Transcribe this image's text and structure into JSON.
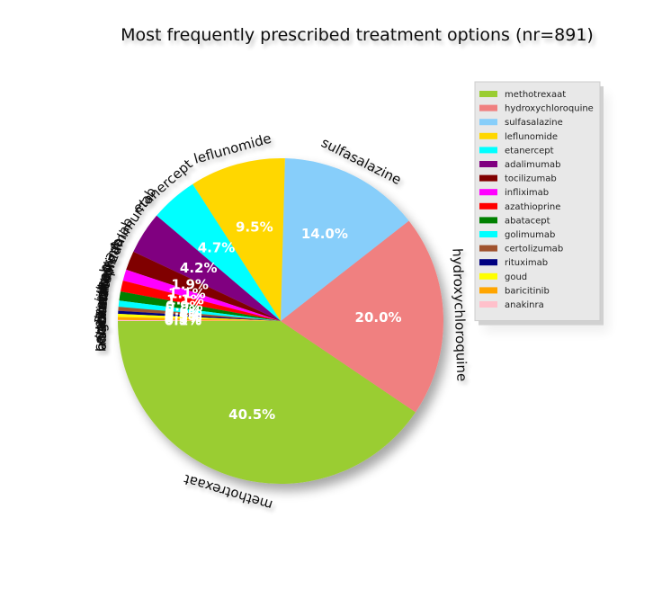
{
  "chart_data": {
    "type": "pie",
    "title": "Most frequently prescribed treatment options (nr=891)",
    "legend_position": "top-right",
    "start_angle_deg": 180,
    "direction": "counterclockwise",
    "categories": [
      "methotrexaat",
      "hydroxychloroquine",
      "sulfasalazine",
      "leflunomide",
      "etanercept",
      "adalimumab",
      "tocilizumab",
      "infliximab",
      "azathioprine",
      "abatacept",
      "golimumab",
      "certolizumab",
      "rituximab",
      "goud",
      "baricitinib",
      "anakinra"
    ],
    "values": [
      40.5,
      20.0,
      14.0,
      9.5,
      4.7,
      4.2,
      1.9,
      1.1,
      1.1,
      0.9,
      0.6,
      0.4,
      0.3,
      0.3,
      0.3,
      0.1
    ],
    "value_labels": [
      "40.5%",
      "20.0%",
      "14.0%",
      "9.5%",
      "4.7%",
      "4.2%",
      "1.9%",
      "1.1%",
      "1.1%",
      "0.9%",
      "0.6%",
      "0.4%",
      "0.3%",
      "0.3%",
      "0.3%",
      "0.1%"
    ],
    "colors": [
      "#9ACD32",
      "#F08080",
      "#87CEFA",
      "#FFD700",
      "#00FFFF",
      "#800080",
      "#800000",
      "#FF00FF",
      "#FF0000",
      "#008000",
      "#00FFFF",
      "#A0522D",
      "#000080",
      "#FFFF00",
      "#FFA500",
      "#FFC0CB"
    ]
  }
}
